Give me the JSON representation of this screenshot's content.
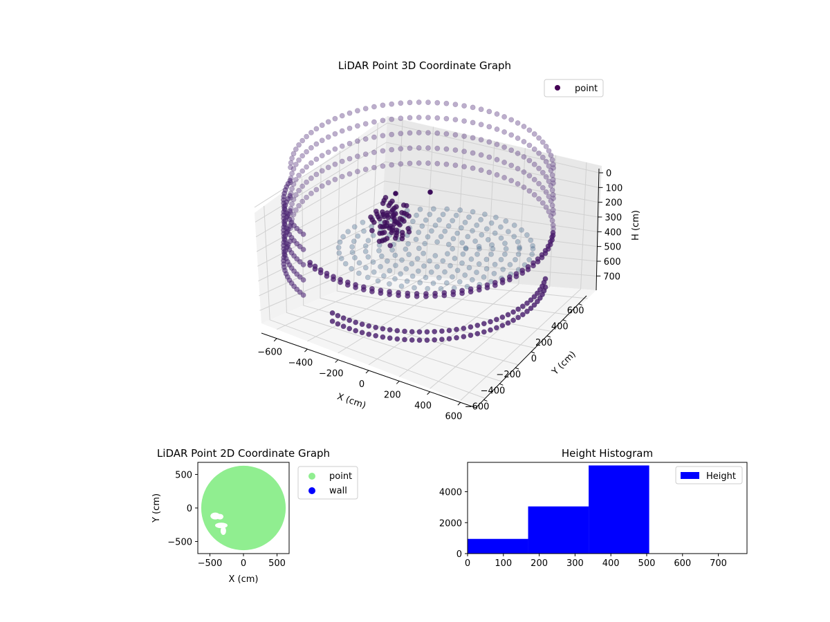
{
  "chart_data": [
    {
      "type": "scatter",
      "projection": "3d",
      "title": "LiDAR Point 3D Coordinate Graph",
      "xlabel": "X (cm)",
      "ylabel": "Y (cm)",
      "zlabel": "H (cm)",
      "xlim": [
        -650,
        650
      ],
      "ylim": [
        -650,
        650
      ],
      "zlim": [
        750,
        0
      ],
      "xticks": [
        "−600",
        "−400",
        "−200",
        "0",
        "200",
        "400",
        "600"
      ],
      "yticks": [
        "−600",
        "−400",
        "−200",
        "0",
        "200",
        "400",
        "600"
      ],
      "zticks": [
        "0",
        "100",
        "200",
        "300",
        "400",
        "500",
        "600",
        "700"
      ],
      "legend": {
        "position": "top-right",
        "entries": [
          "point"
        ]
      },
      "series": [
        {
          "name": "point",
          "color": "#440154",
          "shape": "ring-shaped scan: wall points on a circle of radius ≈ 600 cm spanning heights ≈ 0–500 cm, floor points filling the interior near H ≈ 400–500 cm, with a cluster of obstacle points near X ≈ −300…−100 cm, Y ≈ −100…100 cm"
        }
      ],
      "grid": true
    },
    {
      "type": "scatter",
      "title": "LiDAR Point 2D Coordinate Graph",
      "xlabel": "X (cm)",
      "ylabel": "Y (cm)",
      "xlim": [
        -680,
        680
      ],
      "ylim": [
        -680,
        680
      ],
      "xticks": [
        "−500",
        "0",
        "500"
      ],
      "yticks": [
        "500",
        "0",
        "−500"
      ],
      "legend": {
        "position": "right",
        "entries": [
          "point",
          "wall"
        ]
      },
      "series": [
        {
          "name": "point",
          "color": "#90ee90",
          "shape": "filled disk of radius ≈ 630 cm with small gaps near X ≈ −450…−300 cm, Y ≈ −350…−100 cm"
        },
        {
          "name": "wall",
          "color": "#0000ff"
        }
      ],
      "grid": false
    },
    {
      "type": "bar",
      "title": "Height Histogram",
      "xlabel": "",
      "ylabel": "",
      "xlim": [
        0,
        780
      ],
      "ylim": [
        0,
        5900
      ],
      "xticks": [
        "0",
        "100",
        "200",
        "300",
        "400",
        "500",
        "600",
        "700"
      ],
      "yticks": [
        "0",
        "2000",
        "4000"
      ],
      "bins": [
        {
          "start": 0,
          "end": 169,
          "count": 950
        },
        {
          "start": 169,
          "end": 338,
          "count": 3050
        },
        {
          "start": 338,
          "end": 507,
          "count": 5700
        }
      ],
      "legend": {
        "position": "top-right",
        "entries": [
          "Height"
        ]
      },
      "series": [
        {
          "name": "Height",
          "color": "#0000ff"
        }
      ],
      "grid": false
    }
  ]
}
